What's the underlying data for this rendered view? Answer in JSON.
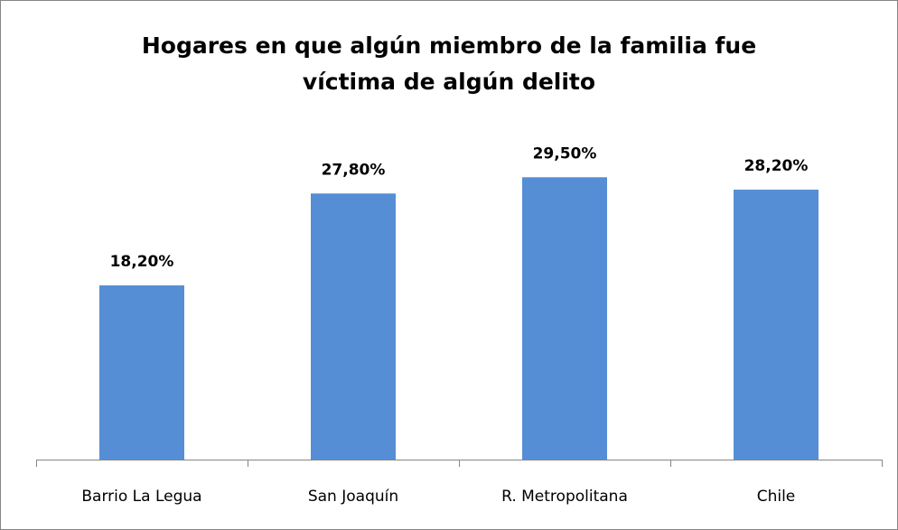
{
  "chart_data": {
    "type": "bar",
    "title": "Hogares en que algún miembro de la familia fue víctima de algún delito",
    "title_lines": [
      "Hogares en que algún miembro de la familia fue",
      "víctima de algún delito"
    ],
    "categories": [
      "Barrio La Legua",
      "San Joaquín",
      "R. Metropolitana",
      "Chile"
    ],
    "values": [
      18.2,
      27.8,
      29.5,
      28.2
    ],
    "value_labels": [
      "18,20%",
      "27,80%",
      "29,50%",
      "28,20%"
    ],
    "color": "#558ed5",
    "ylim": [
      0,
      35
    ]
  }
}
